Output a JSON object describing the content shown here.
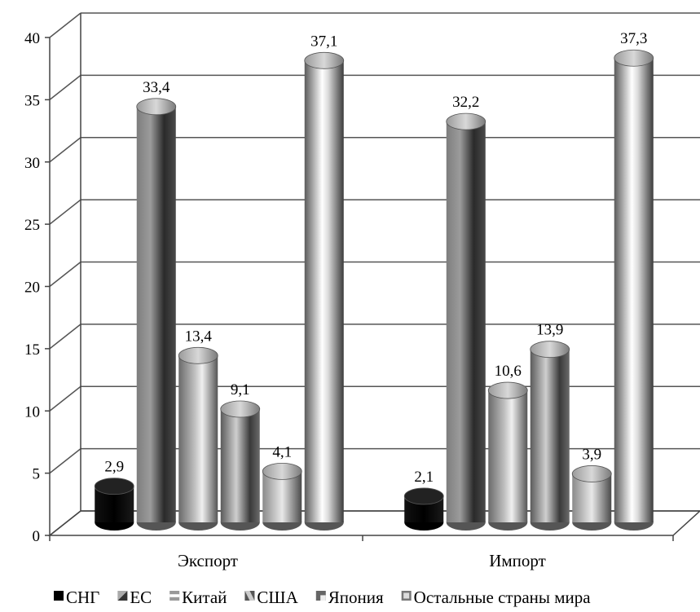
{
  "chart_data": {
    "type": "bar",
    "style": "3d-cylinder",
    "categories": [
      "Экспорт",
      "Импорт"
    ],
    "series": [
      {
        "name": "СНГ",
        "values": [
          2.9,
          2.1
        ],
        "labels": [
          "2,9",
          "2,1"
        ],
        "color": "#000000",
        "legend_icon": "solid-square-icon"
      },
      {
        "name": "ЕС",
        "values": [
          33.4,
          32.2
        ],
        "labels": [
          "33,4",
          "32,2"
        ],
        "color": "#6f6f6f",
        "legend_icon": "diagonal-split-square-icon"
      },
      {
        "name": "Китай",
        "values": [
          13.4,
          10.6
        ],
        "labels": [
          "13,4",
          "10,6"
        ],
        "color": "#8a8a8a",
        "legend_icon": "horizontal-band-square-icon"
      },
      {
        "name": "США",
        "values": [
          9.1,
          13.9
        ],
        "labels": [
          "9,1",
          "13,9"
        ],
        "color": "#7a7a7a",
        "legend_icon": "diagonal-square-icon"
      },
      {
        "name": "Япония",
        "values": [
          4.1,
          3.9
        ],
        "labels": [
          "4,1",
          "3,9"
        ],
        "color": "#9a9a9a",
        "legend_icon": "corner-square-icon"
      },
      {
        "name": "Остальные страны мира",
        "values": [
          37.1,
          37.3
        ],
        "labels": [
          "37,1",
          "37,3"
        ],
        "color": "#b0b0b0",
        "legend_icon": "framed-square-icon"
      }
    ],
    "y_ticks": [
      "0",
      "5",
      "10",
      "15",
      "20",
      "25",
      "30",
      "35",
      "40"
    ],
    "ylim": [
      0,
      40
    ],
    "grid": true,
    "legend_position": "bottom"
  }
}
